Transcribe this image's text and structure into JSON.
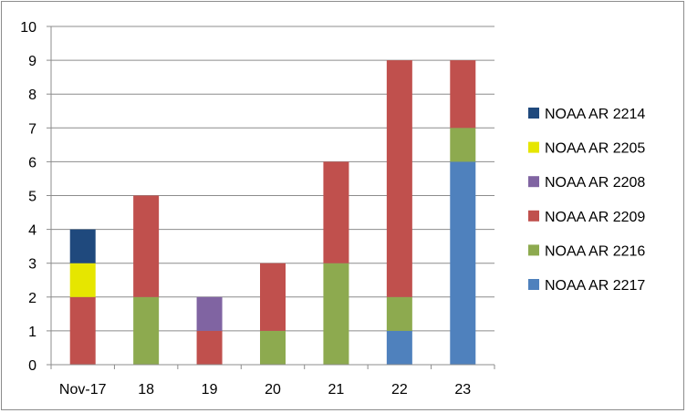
{
  "chart_data": {
    "type": "bar",
    "stacked": true,
    "title": "",
    "xlabel": "",
    "ylabel": "",
    "ylim": [
      0,
      10
    ],
    "yticks": [
      0,
      1,
      2,
      3,
      4,
      5,
      6,
      7,
      8,
      9,
      10
    ],
    "grid": "horizontal",
    "legend_position": "right",
    "categories": [
      "Nov-17",
      "18",
      "19",
      "20",
      "21",
      "22",
      "23"
    ],
    "series": [
      {
        "name": "NOAA AR 2217",
        "color": "#4f81bd",
        "values": [
          0,
          0,
          0,
          0,
          0,
          1,
          6
        ]
      },
      {
        "name": "NOAA AR 2216",
        "color": "#8daa4f",
        "values": [
          0,
          2,
          0,
          1,
          3,
          1,
          1
        ]
      },
      {
        "name": "NOAA AR 2209",
        "color": "#c0504d",
        "values": [
          2,
          3,
          1,
          2,
          3,
          7,
          2
        ]
      },
      {
        "name": "NOAA AR 2208",
        "color": "#8064a2",
        "values": [
          0,
          0,
          1,
          0,
          0,
          0,
          0
        ]
      },
      {
        "name": "NOAA AR 2205",
        "color": "#e6e600",
        "values": [
          1,
          0,
          0,
          0,
          0,
          0,
          0
        ]
      },
      {
        "name": "NOAA AR 2214",
        "color": "#1f497d",
        "values": [
          1,
          0,
          0,
          0,
          0,
          0,
          0
        ]
      }
    ],
    "legend_order": [
      "NOAA AR 2214",
      "NOAA AR 2205",
      "NOAA AR 2208",
      "NOAA AR 2209",
      "NOAA AR 2216",
      "NOAA AR 2217"
    ]
  }
}
